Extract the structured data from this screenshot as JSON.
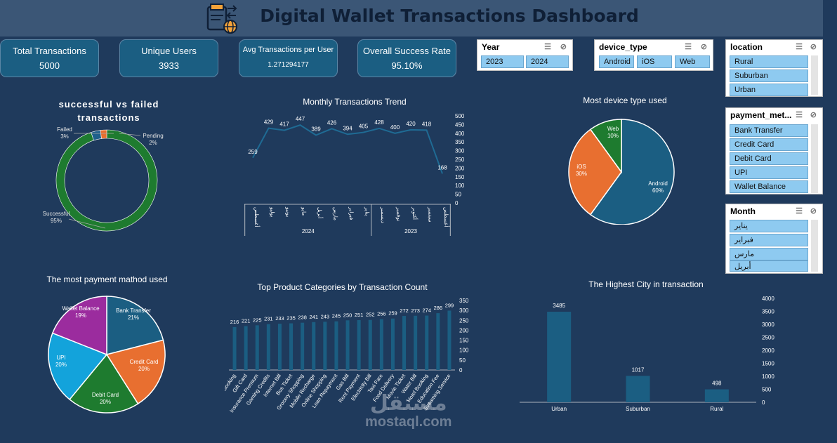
{
  "header": {
    "title": "Digital Wallet Transactions Dashboard",
    "logo_icon": "wallet-globe-icon"
  },
  "kpis": [
    {
      "label": "Total Transactions",
      "value": "5000"
    },
    {
      "label": "Unique Users",
      "value": "3933"
    },
    {
      "label": "Avg Transactions per User",
      "value": "1.271294177"
    },
    {
      "label": "Overall Success Rate",
      "value": "95.10%"
    }
  ],
  "slicers": {
    "year": {
      "title": "Year",
      "items": [
        "2023",
        "2024"
      ]
    },
    "device_type": {
      "title": "device_type",
      "items": [
        "Android",
        "iOS",
        "Web"
      ]
    },
    "location": {
      "title": "location",
      "items": [
        "Rural",
        "Suburban",
        "Urban"
      ]
    },
    "payment_method": {
      "title": "payment_met...",
      "items": [
        "Bank Transfer",
        "Credit Card",
        "Debit Card",
        "UPI",
        "Wallet Balance"
      ]
    },
    "month": {
      "title": "Month",
      "items": [
        "يناير",
        "فبراير",
        "مارس",
        "أبريل"
      ]
    }
  },
  "watermark": {
    "arabic": "مستقل",
    "latin": "mostaql.com"
  },
  "chart_data": [
    {
      "type": "pie",
      "variant": "donut",
      "title": "successful vs failed transactions",
      "categories": [
        "Successful",
        "Failed",
        "Pending"
      ],
      "values": [
        95,
        3,
        2
      ],
      "labels": [
        "95%",
        "3%",
        "2%"
      ],
      "colors": [
        "#1e7b2f",
        "#1f5f8b",
        "#e86f30"
      ]
    },
    {
      "type": "line",
      "title": "Monthly Transactions Trend",
      "categories": [
        "أغسطس",
        "يوليو",
        "يونيو",
        "مايو",
        "أبريل",
        "مارس",
        "فبراير",
        "يناير",
        "ديسمبر",
        "نوفمبر",
        "أكتوبر",
        "سبتمبر",
        "أغسطس"
      ],
      "groups": [
        {
          "label": "2024",
          "count": 8
        },
        {
          "label": "2023",
          "count": 5
        }
      ],
      "values": [
        259,
        429,
        417,
        447,
        389,
        426,
        394,
        405,
        428,
        400,
        420,
        418,
        168
      ],
      "yticks": [
        0,
        50,
        100,
        150,
        200,
        250,
        300,
        350,
        400,
        450,
        500
      ],
      "ylim": [
        0,
        500
      ],
      "color": "#1f6b94"
    },
    {
      "type": "pie",
      "title": "Most device type used",
      "categories": [
        "Android",
        "iOS",
        "Web"
      ],
      "values": [
        60,
        30,
        10
      ],
      "labels": [
        "60%",
        "30%",
        "10%"
      ],
      "colors": [
        "#1b5e82",
        "#e86f30",
        "#1e7b2f"
      ]
    },
    {
      "type": "pie",
      "title": "The most payment mathod used",
      "categories": [
        "Bank Transfer",
        "Credit Card",
        "Debit Card",
        "UPI",
        "Wallet Balance"
      ],
      "values": [
        21,
        20,
        20,
        20,
        19
      ],
      "labels": [
        "21%",
        "20%",
        "20%",
        "20%",
        "19%"
      ],
      "colors": [
        "#1b5e82",
        "#e86f30",
        "#1e7b2f",
        "#13a3db",
        "#9b2c9e"
      ]
    },
    {
      "type": "bar",
      "title": "Top Product Categories by Transaction Count",
      "categories": [
        "Flight Booking",
        "Gift Card",
        "Insurance Premium",
        "Gaming Credits",
        "Internet Bill",
        "Bus Ticket",
        "Grocery Shopping",
        "Mobile Recharge",
        "Online Shopping",
        "Loan Repayment",
        "Gas Bill",
        "Rent Payment",
        "Electricity Bill",
        "Taxi Fare",
        "Food Delivery",
        "Movie Ticket",
        "Water Bill",
        "Hotel Booking",
        "Education Fee",
        "Streaming Service"
      ],
      "values": [
        216,
        221,
        225,
        231,
        233,
        235,
        238,
        241,
        243,
        245,
        250,
        251,
        252,
        256,
        259,
        272,
        273,
        274,
        286,
        299
      ],
      "yticks": [
        0,
        50,
        100,
        150,
        200,
        250,
        300,
        350
      ],
      "ylim": [
        0,
        350
      ],
      "color": "#1b5e82"
    },
    {
      "type": "bar",
      "title": "The Highest City in transaction",
      "categories": [
        "Urban",
        "Suburban",
        "Rural"
      ],
      "values": [
        3485,
        1017,
        498
      ],
      "yticks": [
        0,
        500,
        1000,
        1500,
        2000,
        2500,
        3000,
        3500,
        4000
      ],
      "ylim": [
        0,
        4000
      ],
      "color": "#1b5e82"
    }
  ]
}
